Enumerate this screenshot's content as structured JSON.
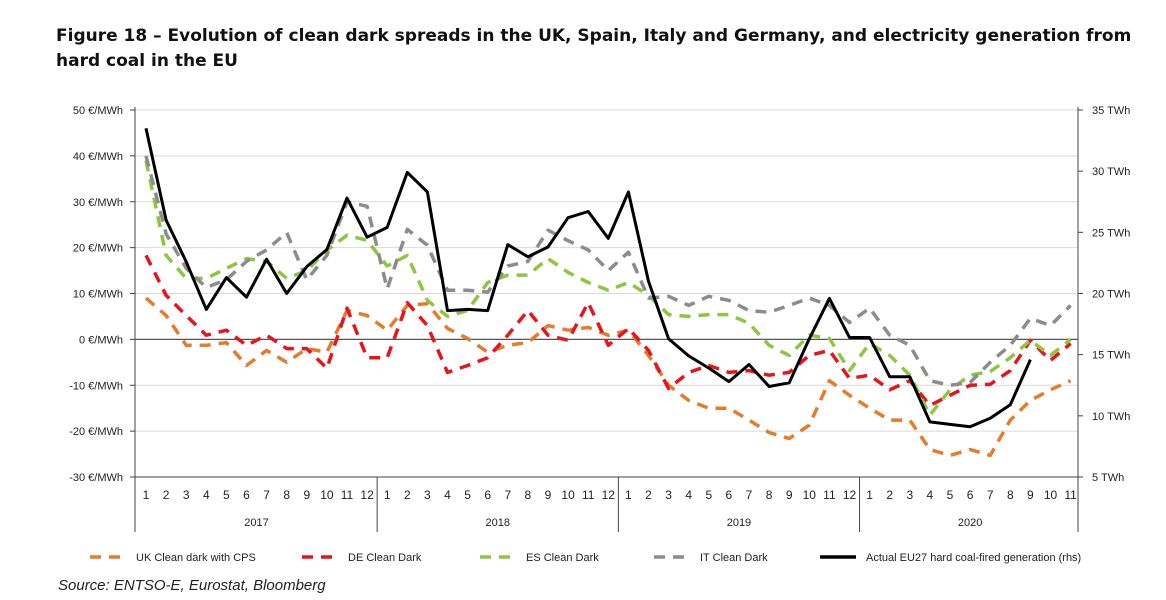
{
  "title": "Figure 18 – Evolution of clean dark spreads in the UK, Spain, Italy and Germany, and electricity generation from hard coal in the EU",
  "source": "Source: ENTSO-E, Eurostat, Bloomberg",
  "chart_data": {
    "type": "line",
    "title": "Figure 18 – Evolution of clean dark spreads in the UK, Spain, Italy and Germany, and electricity generation from hard coal in the EU",
    "years": [
      "2017",
      "2018",
      "2019",
      "2020"
    ],
    "month_labels": [
      "1",
      "2",
      "3",
      "4",
      "5",
      "6",
      "7",
      "8",
      "9",
      "10",
      "11",
      "12",
      "1",
      "2",
      "3",
      "4",
      "5",
      "6",
      "7",
      "8",
      "9",
      "10",
      "11",
      "12",
      "1",
      "2",
      "3",
      "4",
      "5",
      "6",
      "7",
      "8",
      "9",
      "10",
      "11",
      "12",
      "1",
      "2",
      "3",
      "4",
      "5",
      "6",
      "7",
      "8",
      "9",
      "10",
      "11"
    ],
    "x": [
      "2017-01",
      "2017-02",
      "2017-03",
      "2017-04",
      "2017-05",
      "2017-06",
      "2017-07",
      "2017-08",
      "2017-09",
      "2017-10",
      "2017-11",
      "2017-12",
      "2018-01",
      "2018-02",
      "2018-03",
      "2018-04",
      "2018-05",
      "2018-06",
      "2018-07",
      "2018-08",
      "2018-09",
      "2018-10",
      "2018-11",
      "2018-12",
      "2019-01",
      "2019-02",
      "2019-03",
      "2019-04",
      "2019-05",
      "2019-06",
      "2019-07",
      "2019-08",
      "2019-09",
      "2019-10",
      "2019-11",
      "2019-12",
      "2020-01",
      "2020-02",
      "2020-03",
      "2020-04",
      "2020-05",
      "2020-06",
      "2020-07",
      "2020-08",
      "2020-09",
      "2020-10",
      "2020-11"
    ],
    "y_left": {
      "range": [
        -30,
        50
      ],
      "ticks": [
        "50 €/MWh",
        "40 €/MWh",
        "30 €/MWh",
        "20 €/MWh",
        "10 €/MWh",
        "0 €/MWh",
        "-10 €/MWh",
        "-20 €/MWh",
        "-30 €/MWh"
      ],
      "tick_values": [
        50,
        40,
        30,
        20,
        10,
        0,
        -10,
        -20,
        -30
      ]
    },
    "y_right": {
      "range": [
        5,
        35
      ],
      "ticks": [
        "35 TWh",
        "30 TWh",
        "25 TWh",
        "20 TWh",
        "15 TWh",
        "10 TWh",
        "5 TWh"
      ],
      "tick_values": [
        35,
        30,
        25,
        20,
        15,
        10,
        5
      ]
    },
    "grid": true,
    "legend_position": "bottom",
    "series": [
      {
        "name": "UK Clean dark with CPS",
        "axis": "left",
        "style": "dashed",
        "color": "#E37D2B",
        "values": [
          9,
          5.2,
          -1.3,
          -1.3,
          -0.7,
          -5.7,
          -2.4,
          -5,
          -2,
          -2.8,
          6.3,
          5.2,
          2,
          7.4,
          7.8,
          2.4,
          0.2,
          -2.8,
          -1.3,
          -0.7,
          3,
          2,
          2.6,
          0.9,
          2,
          -3.5,
          -10,
          -13.3,
          -15,
          -15,
          -17.6,
          -20.3,
          -21.6,
          -18.7,
          -9,
          -12.2,
          -15,
          -17.6,
          -17.6,
          -24,
          -25.3,
          -24,
          -25.3,
          -17.6,
          -13.3,
          -11,
          -9
        ]
      },
      {
        "name": "DE Clean Dark",
        "axis": "left",
        "style": "dashed",
        "color": "#E8141B",
        "values": [
          18.3,
          9.6,
          5.2,
          0.9,
          2,
          -1.3,
          0.9,
          -2,
          -2,
          -6.3,
          6.8,
          -4,
          -4,
          8,
          3,
          -7.2,
          -5.7,
          -4,
          0.9,
          6.3,
          0.9,
          -0.2,
          8,
          -1.3,
          2.4,
          -2.4,
          -10.7,
          -7.2,
          -5.7,
          -7.2,
          -6.8,
          -7.8,
          -7.2,
          -3.5,
          -2.4,
          -8.5,
          -7.8,
          -11,
          -9,
          -14.4,
          -12.2,
          -10,
          -9.8,
          -6.8,
          -0.2,
          -4.6,
          -0.9
        ]
      },
      {
        "name": "ES Clean Dark",
        "axis": "left",
        "style": "dashed",
        "color": "#8DC63F",
        "values": [
          39,
          18.3,
          13.3,
          13.3,
          15.5,
          17.6,
          17,
          13.3,
          15,
          19.4,
          22.7,
          21.6,
          16,
          18.3,
          8.5,
          5,
          6.3,
          12.4,
          14,
          14,
          17.6,
          14.6,
          12.4,
          10.7,
          12.4,
          9.6,
          5.4,
          5,
          5.4,
          5.4,
          3.5,
          -1.3,
          -3.5,
          0.9,
          0.2,
          -6.8,
          -0.9,
          -3.5,
          -7.8,
          -16.5,
          -11,
          -7.8,
          -7,
          -4,
          -0.2,
          -3.5,
          0
        ]
      },
      {
        "name": "IT Clean Dark",
        "axis": "left",
        "style": "dashed",
        "color": "#8C8C8C",
        "values": [
          40,
          23,
          15.5,
          11.3,
          13,
          17,
          19.5,
          23.3,
          13,
          18.3,
          30,
          29,
          11,
          24,
          20.5,
          10.7,
          10.7,
          10.3,
          16,
          17,
          23.8,
          21.5,
          19.5,
          15,
          19,
          9,
          9.4,
          7.4,
          9.4,
          8.5,
          6.3,
          5.9,
          7.4,
          9,
          7.4,
          3.7,
          6.8,
          0.9,
          -1.3,
          -9,
          -10,
          -9.4,
          -5,
          -1.3,
          4.6,
          3,
          7.4
        ]
      },
      {
        "name": "Actual EU27 hard coal-fired generation (rhs)",
        "axis": "right",
        "style": "solid",
        "color": "#000000",
        "values": [
          33.5,
          26,
          22.6,
          18.7,
          21.3,
          19.7,
          22.8,
          20,
          22.2,
          23.6,
          27.8,
          24.6,
          25.4,
          29.9,
          28.3,
          18.6,
          18.7,
          18.6,
          24,
          23,
          23.8,
          26.2,
          26.7,
          24.5,
          28.3,
          21,
          16.3,
          14.9,
          13.9,
          12.8,
          14.2,
          12.4,
          12.7,
          16.3,
          19.6,
          16.4,
          16.4,
          13.2,
          13.2,
          9.5,
          9.3,
          9.1,
          9.8,
          10.9,
          14.6,
          null,
          null
        ]
      }
    ]
  }
}
